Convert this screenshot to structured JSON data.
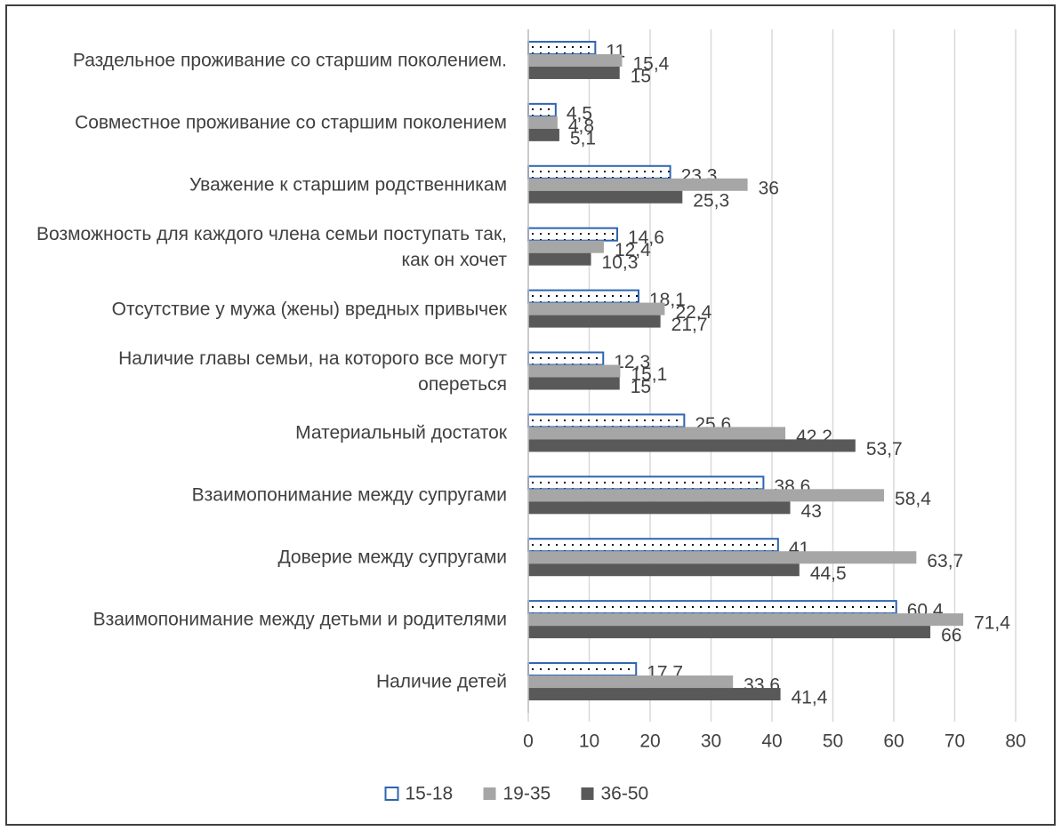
{
  "chart_data": {
    "type": "bar",
    "orientation": "horizontal",
    "categories": [
      "Раздельное проживание со старшим поколением.",
      "Совместное проживание со старшим поколением",
      "Уважение к старшим родственникам",
      "Возможность для каждого члена семьи поступать так, как он хочет",
      "Отсутствие у мужа (жены) вредных привычек",
      "Наличие главы семьи, на которого все могут опереться",
      "Материальный достаток",
      "Взаимопонимание между супругами",
      "Доверие между супругами",
      "Взаимопонимание между детьми и родителями",
      "Наличие детей"
    ],
    "series": [
      {
        "name": "15-18",
        "color": "#2e64b0",
        "pattern": "dotted",
        "values": [
          11,
          4.5,
          23.3,
          14.6,
          18.1,
          12.3,
          25.6,
          38.6,
          41,
          60.4,
          17.7
        ],
        "value_labels": [
          "11",
          "4,5",
          "23,3",
          "14,6",
          "18,1",
          "12,3",
          "25,6",
          "38,6",
          "41",
          "60,4",
          "17,7"
        ]
      },
      {
        "name": "19-35",
        "color": "#a6a6a6",
        "values": [
          15.4,
          4.8,
          36,
          12.4,
          22.4,
          15.1,
          42.2,
          58.4,
          63.7,
          71.4,
          33.6
        ],
        "value_labels": [
          "15,4",
          "4,8",
          "36",
          "12,4",
          "22,4",
          "15,1",
          "42,2",
          "58,4",
          "63,7",
          "71,4",
          "33,6"
        ]
      },
      {
        "name": "36-50",
        "color": "#595959",
        "values": [
          15,
          5.1,
          25.3,
          10.3,
          21.7,
          15,
          53.7,
          43,
          44.5,
          66,
          41.4
        ],
        "value_labels": [
          "15",
          "5,1",
          "25,3",
          "10,3",
          "21,7",
          "15",
          "53,7",
          "43",
          "44,5",
          "66",
          "41,4"
        ]
      }
    ],
    "xlim": [
      0,
      80
    ],
    "xticks": [
      0,
      10,
      20,
      30,
      40,
      50,
      60,
      70,
      80
    ],
    "grid": true,
    "legend": "bottom"
  }
}
